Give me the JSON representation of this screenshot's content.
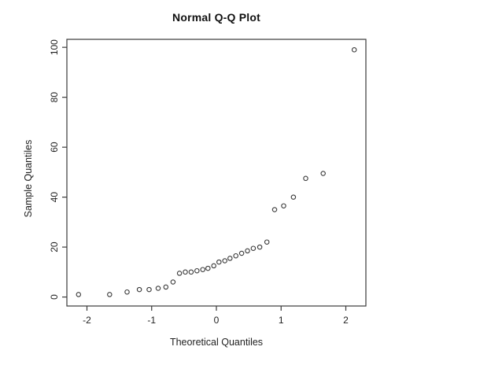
{
  "chart_data": {
    "type": "scatter",
    "title": "Normal Q-Q Plot",
    "xlabel": "Theoretical Quantiles",
    "ylabel": "Sample Quantiles",
    "x_ticks": [
      -2,
      -1,
      0,
      1,
      2
    ],
    "y_ticks": [
      0,
      20,
      40,
      60,
      80,
      100
    ],
    "xlim": [
      -2.31,
      2.31
    ],
    "ylim": [
      -3.6,
      103.2
    ],
    "grid": false,
    "legend": "none",
    "marker": "open-circle",
    "n_points": 30,
    "colors": {
      "marker": "#3a3a3a",
      "axis": "#3a3a3a",
      "text": "#1f1f1f",
      "background": "#ffffff"
    },
    "points": {
      "theoretical_quantiles": [
        -2.13,
        -1.65,
        -1.38,
        -1.19,
        -1.04,
        -0.9,
        -0.78,
        -0.67,
        -0.57,
        -0.48,
        -0.39,
        -0.3,
        -0.21,
        -0.13,
        -0.04,
        0.04,
        0.13,
        0.21,
        0.3,
        0.39,
        0.48,
        0.57,
        0.67,
        0.78,
        0.9,
        1.04,
        1.19,
        1.38,
        1.65,
        2.13
      ],
      "sample_quantiles": [
        1,
        1,
        2,
        3,
        3,
        3.5,
        4,
        6,
        9.5,
        10,
        10,
        10.5,
        11,
        11.5,
        12.5,
        14,
        14.5,
        15.5,
        16.5,
        17.5,
        18.5,
        19.5,
        20,
        22,
        35,
        36.5,
        40,
        47.5,
        49.5,
        99
      ]
    }
  }
}
